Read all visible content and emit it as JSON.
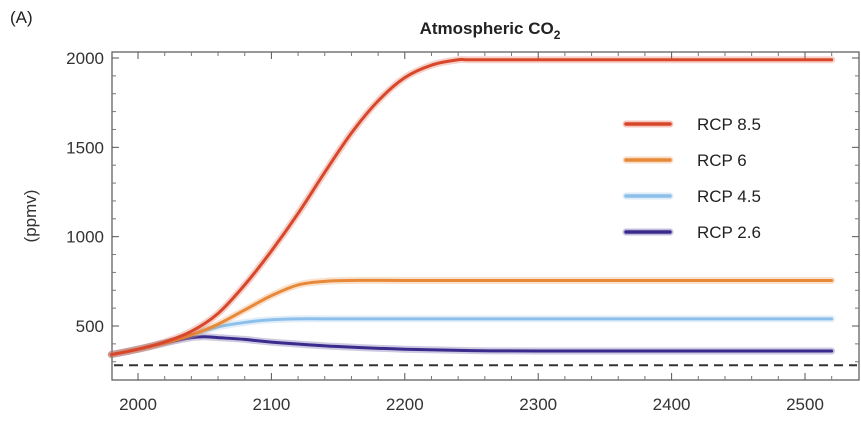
{
  "panel_label": "(A)",
  "chart_data": {
    "type": "line",
    "title_main": "Atmospheric CO",
    "title_sub": "2",
    "xlabel": "",
    "ylabel": "(ppmv)",
    "xlim": [
      1980,
      2520
    ],
    "ylim": [
      200,
      2000
    ],
    "xticks": [
      2000,
      2100,
      2200,
      2300,
      2400,
      2500
    ],
    "yticks": [
      500,
      1000,
      1500,
      2000
    ],
    "grid": false,
    "legend_position": "right",
    "reference_line": {
      "y": 280,
      "style": "dashed"
    },
    "series": [
      {
        "name": "RCP 8.5",
        "color": "#d9472b",
        "x": [
          1980,
          2000,
          2020,
          2040,
          2060,
          2080,
          2100,
          2120,
          2140,
          2160,
          2180,
          2200,
          2220,
          2240,
          2250,
          2300,
          2400,
          2520
        ],
        "y": [
          340,
          370,
          410,
          470,
          570,
          730,
          920,
          1130,
          1360,
          1580,
          1760,
          1890,
          1960,
          1990,
          1990,
          1990,
          1990,
          1990
        ]
      },
      {
        "name": "RCP 6",
        "color": "#e8893a",
        "x": [
          1980,
          2000,
          2020,
          2040,
          2060,
          2080,
          2100,
          2120,
          2140,
          2160,
          2200,
          2300,
          2400,
          2520
        ],
        "y": [
          340,
          370,
          405,
          450,
          510,
          590,
          670,
          730,
          750,
          755,
          755,
          755,
          755,
          755
        ]
      },
      {
        "name": "RCP 4.5",
        "color": "#8cc0ea",
        "x": [
          1980,
          2000,
          2020,
          2040,
          2060,
          2080,
          2100,
          2120,
          2150,
          2200,
          2300,
          2400,
          2520
        ],
        "y": [
          340,
          370,
          405,
          450,
          495,
          520,
          535,
          540,
          540,
          540,
          540,
          540,
          540
        ]
      },
      {
        "name": "RCP 2.6",
        "color": "#3b2b8c",
        "x": [
          1980,
          2000,
          2020,
          2040,
          2050,
          2060,
          2080,
          2100,
          2150,
          2200,
          2250,
          2300,
          2400,
          2520
        ],
        "y": [
          340,
          370,
          405,
          435,
          440,
          435,
          425,
          410,
          385,
          370,
          362,
          360,
          360,
          360
        ]
      }
    ]
  }
}
